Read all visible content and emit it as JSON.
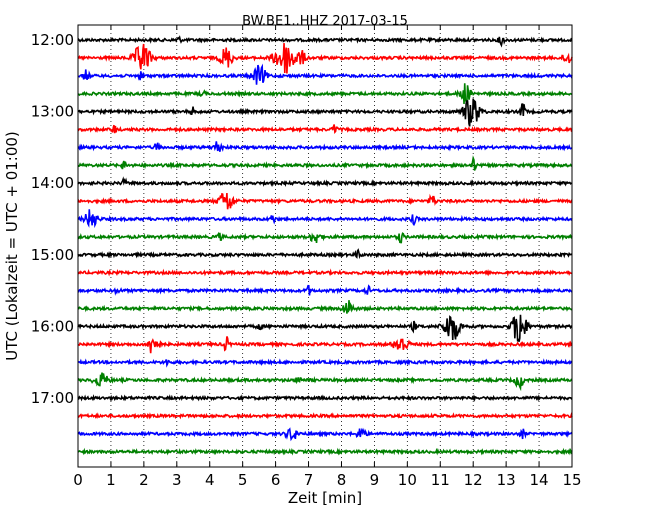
{
  "chart_data": {
    "type": "line",
    "title": "BW.BE1..HHZ 2017-03-15",
    "xlabel": "Zeit  [min]",
    "ylabel": "UTC (Lokalzeit = UTC + 01:00)",
    "xlim": [
      0,
      15
    ],
    "x_ticks": [
      "0",
      "1",
      "2",
      "3",
      "4",
      "5",
      "6",
      "7",
      "8",
      "9",
      "10",
      "11",
      "12",
      "13",
      "14",
      "15"
    ],
    "y_tick_labels": [
      "12:00",
      "13:00",
      "14:00",
      "15:00",
      "16:00",
      "17:00"
    ],
    "grid": "dotted vertical at each minute",
    "trace_colors": [
      "#000000",
      "#ff0000",
      "#0000ff",
      "#008000"
    ],
    "traces": [
      {
        "start": "12:00",
        "events": [
          {
            "t": 12.85,
            "amp": 0.5,
            "w": 0.05
          },
          {
            "t": 3.05,
            "amp": 0.25,
            "w": 0.05
          }
        ]
      },
      {
        "start": "12:15",
        "events": [
          {
            "t": 1.95,
            "amp": 1.4,
            "w": 0.16
          },
          {
            "t": 4.5,
            "amp": 1.0,
            "w": 0.12
          },
          {
            "t": 6.3,
            "amp": 1.5,
            "w": 0.22
          },
          {
            "t": 6.8,
            "amp": 0.5,
            "w": 0.08
          },
          {
            "t": 14.85,
            "amp": 0.6,
            "w": 0.08
          }
        ]
      },
      {
        "start": "12:30",
        "events": [
          {
            "t": 0.25,
            "amp": 0.5,
            "w": 0.06
          },
          {
            "t": 5.5,
            "amp": 0.9,
            "w": 0.14
          },
          {
            "t": 1.9,
            "amp": 0.3,
            "w": 0.05
          }
        ]
      },
      {
        "start": "12:45",
        "events": [
          {
            "t": 11.75,
            "amp": 1.0,
            "w": 0.1
          },
          {
            "t": 3.8,
            "amp": 0.3,
            "w": 0.05
          }
        ]
      },
      {
        "start": "13:00",
        "events": [
          {
            "t": 11.95,
            "amp": 1.4,
            "w": 0.16
          },
          {
            "t": 13.5,
            "amp": 0.8,
            "w": 0.05
          },
          {
            "t": 3.5,
            "amp": 0.35,
            "w": 0.05
          }
        ]
      },
      {
        "start": "13:15",
        "events": [
          {
            "t": 1.1,
            "amp": 0.4,
            "w": 0.05
          },
          {
            "t": 7.8,
            "amp": 0.45,
            "w": 0.05
          }
        ]
      },
      {
        "start": "13:30",
        "events": [
          {
            "t": 4.25,
            "amp": 0.7,
            "w": 0.07
          },
          {
            "t": 2.4,
            "amp": 0.4,
            "w": 0.05
          }
        ]
      },
      {
        "start": "13:45",
        "events": [
          {
            "t": 12.0,
            "amp": 0.6,
            "w": 0.05
          },
          {
            "t": 1.4,
            "amp": 0.4,
            "w": 0.05
          }
        ]
      },
      {
        "start": "14:00",
        "events": [
          {
            "t": 1.4,
            "amp": 0.3,
            "w": 0.05
          }
        ]
      },
      {
        "start": "14:15",
        "events": [
          {
            "t": 4.5,
            "amp": 1.0,
            "w": 0.14
          },
          {
            "t": 10.75,
            "amp": 0.6,
            "w": 0.06
          }
        ]
      },
      {
        "start": "14:30",
        "events": [
          {
            "t": 0.4,
            "amp": 0.9,
            "w": 0.12
          },
          {
            "t": 5.9,
            "amp": 0.4,
            "w": 0.05
          },
          {
            "t": 10.2,
            "amp": 0.45,
            "w": 0.05
          }
        ]
      },
      {
        "start": "14:45",
        "events": [
          {
            "t": 7.2,
            "amp": 0.55,
            "w": 0.1
          },
          {
            "t": 9.8,
            "amp": 0.5,
            "w": 0.06
          },
          {
            "t": 4.3,
            "amp": 0.3,
            "w": 0.05
          }
        ]
      },
      {
        "start": "15:00",
        "events": [
          {
            "t": 8.5,
            "amp": 0.35,
            "w": 0.05
          }
        ]
      },
      {
        "start": "15:15",
        "events": []
      },
      {
        "start": "15:30",
        "events": [
          {
            "t": 7.0,
            "amp": 0.4,
            "w": 0.05
          },
          {
            "t": 8.8,
            "amp": 0.4,
            "w": 0.05
          },
          {
            "t": 1.2,
            "amp": 0.25,
            "w": 0.05
          }
        ]
      },
      {
        "start": "15:45",
        "events": [
          {
            "t": 8.2,
            "amp": 0.75,
            "w": 0.1
          }
        ]
      },
      {
        "start": "16:00",
        "events": [
          {
            "t": 11.35,
            "amp": 1.4,
            "w": 0.16
          },
          {
            "t": 13.4,
            "amp": 1.9,
            "w": 0.13
          },
          {
            "t": 10.2,
            "amp": 0.4,
            "w": 0.05
          },
          {
            "t": 5.5,
            "amp": 0.3,
            "w": 0.05
          }
        ]
      },
      {
        "start": "16:15",
        "events": [
          {
            "t": 2.3,
            "amp": 1.2,
            "w": 0.1
          },
          {
            "t": 4.5,
            "amp": 0.7,
            "w": 0.05
          },
          {
            "t": 9.8,
            "amp": 0.8,
            "w": 0.14
          }
        ]
      },
      {
        "start": "16:30",
        "events": [
          {
            "t": 2.7,
            "amp": 0.25,
            "w": 0.05
          }
        ]
      },
      {
        "start": "16:45",
        "events": [
          {
            "t": 0.7,
            "amp": 0.6,
            "w": 0.14
          },
          {
            "t": 6.7,
            "amp": 0.4,
            "w": 0.05
          },
          {
            "t": 13.4,
            "amp": 0.7,
            "w": 0.08
          }
        ]
      },
      {
        "start": "17:00",
        "events": []
      },
      {
        "start": "17:15",
        "events": []
      },
      {
        "start": "17:30",
        "events": [
          {
            "t": 6.5,
            "amp": 0.5,
            "w": 0.12
          },
          {
            "t": 8.6,
            "amp": 0.6,
            "w": 0.08
          },
          {
            "t": 13.5,
            "amp": 0.4,
            "w": 0.05
          }
        ]
      },
      {
        "start": "17:45",
        "events": []
      }
    ]
  }
}
